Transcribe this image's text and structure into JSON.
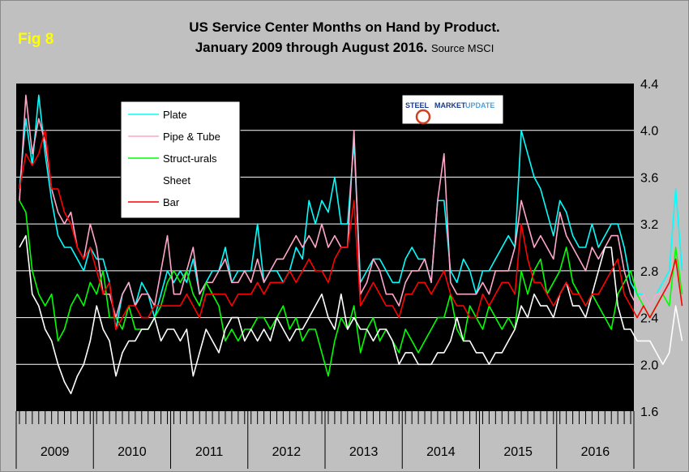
{
  "figure": {
    "fig_label": "Fig 8",
    "title_line1": "US Service Center Months on Hand by Product.",
    "title_line2": "January 2009 through August 2016.",
    "source": "Source MSCI",
    "logo": "STEEL MARKET UPDATE"
  },
  "colors": {
    "plot_bg": "#000000",
    "Plate": "#00ffff",
    "Pipe & Tube": "#ffa6c9",
    "Struct-urals": "#00ff00",
    "Sheet": "#ffffff",
    "Bar": "#ff0000"
  },
  "chart_data": {
    "type": "line",
    "xlabel": "",
    "ylabel": "",
    "ylim": [
      1.6,
      4.4
    ],
    "yticks": [
      "1.6",
      "2.0",
      "2.4",
      "2.8",
      "3.2",
      "3.6",
      "4.0",
      "4.4"
    ],
    "grid": "horizontal",
    "legend_position": "top-left",
    "year_labels": [
      "2009",
      "2010",
      "2011",
      "2012",
      "2013",
      "2014",
      "2015",
      "2016"
    ],
    "x_start": "2009-01",
    "x_end": "2016-08",
    "series": [
      {
        "name": "Plate",
        "values": [
          3.5,
          4.1,
          3.7,
          4.3,
          3.8,
          3.4,
          3.1,
          3.0,
          3.0,
          2.9,
          2.8,
          3.0,
          2.9,
          2.9,
          2.7,
          2.3,
          2.6,
          2.7,
          2.5,
          2.7,
          2.6,
          2.4,
          2.6,
          2.8,
          2.7,
          2.8,
          2.7,
          2.9,
          2.6,
          2.7,
          2.8,
          2.8,
          3.0,
          2.7,
          2.8,
          2.8,
          2.8,
          3.2,
          2.7,
          2.8,
          2.8,
          2.7,
          2.8,
          3.0,
          2.9,
          3.4,
          3.2,
          3.4,
          3.3,
          3.6,
          3.2,
          3.2,
          3.9,
          2.7,
          2.8,
          2.9,
          2.9,
          2.8,
          2.7,
          2.7,
          2.9,
          3.0,
          2.9,
          2.9,
          2.7,
          3.4,
          3.4,
          2.8,
          2.7,
          2.9,
          2.8,
          2.6,
          2.8,
          2.8,
          2.9,
          3.0,
          3.1,
          3.0,
          4.0,
          3.8,
          3.6,
          3.5,
          3.3,
          3.1,
          3.4,
          3.3,
          3.1,
          3.0,
          3.0,
          3.2,
          3.0,
          3.1,
          3.2,
          3.2,
          3.0,
          2.7,
          2.6,
          2.6,
          2.5,
          2.6,
          2.7,
          2.8,
          3.5,
          2.8
        ]
      },
      {
        "name": "Pipe & Tube",
        "values": [
          3.4,
          4.3,
          3.8,
          4.1,
          3.9,
          3.5,
          3.3,
          3.2,
          3.3,
          3.0,
          2.9,
          3.2,
          3.0,
          2.6,
          2.6,
          2.4,
          2.6,
          2.7,
          2.5,
          2.6,
          2.6,
          2.5,
          2.8,
          3.1,
          2.6,
          2.6,
          2.8,
          3.0,
          2.6,
          2.7,
          2.7,
          2.8,
          2.9,
          2.7,
          2.7,
          2.8,
          2.7,
          2.9,
          2.7,
          2.8,
          2.9,
          2.9,
          3.0,
          3.1,
          3.0,
          3.1,
          3.0,
          3.2,
          3.0,
          3.1,
          3.0,
          3.0,
          4.0,
          2.6,
          2.7,
          2.9,
          2.8,
          2.6,
          2.6,
          2.5,
          2.7,
          2.8,
          2.8,
          2.9,
          2.7,
          3.4,
          3.8,
          2.7,
          2.6,
          2.6,
          2.6,
          2.6,
          2.7,
          2.6,
          2.8,
          2.8,
          2.8,
          3.0,
          3.4,
          3.2,
          3.0,
          3.1,
          3.0,
          2.9,
          3.3,
          3.1,
          3.0,
          2.9,
          2.8,
          3.0,
          2.9,
          3.0,
          3.1,
          3.1,
          2.8,
          2.6,
          2.5,
          2.6,
          2.5,
          2.6,
          2.6,
          2.7,
          3.0,
          2.6
        ]
      },
      {
        "name": "Struct-urals",
        "values": [
          3.4,
          3.3,
          2.8,
          2.6,
          2.5,
          2.6,
          2.2,
          2.3,
          2.5,
          2.6,
          2.5,
          2.7,
          2.6,
          2.8,
          2.4,
          2.4,
          2.3,
          2.5,
          2.3,
          2.3,
          2.3,
          2.4,
          2.5,
          2.7,
          2.8,
          2.7,
          2.8,
          2.6,
          2.5,
          2.7,
          2.6,
          2.5,
          2.2,
          2.3,
          2.2,
          2.3,
          2.3,
          2.4,
          2.4,
          2.3,
          2.4,
          2.5,
          2.3,
          2.4,
          2.2,
          2.3,
          2.3,
          2.1,
          1.9,
          2.2,
          2.4,
          2.3,
          2.5,
          2.1,
          2.3,
          2.4,
          2.2,
          2.3,
          2.2,
          2.1,
          2.3,
          2.2,
          2.1,
          2.2,
          2.3,
          2.4,
          2.4,
          2.6,
          2.3,
          2.2,
          2.5,
          2.4,
          2.3,
          2.5,
          2.4,
          2.3,
          2.4,
          2.3,
          2.8,
          2.6,
          2.8,
          2.9,
          2.6,
          2.7,
          2.8,
          3.0,
          2.7,
          2.6,
          2.5,
          2.6,
          2.5,
          2.4,
          2.3,
          2.6,
          2.7,
          2.8,
          2.6,
          2.5,
          2.4,
          2.5,
          2.6,
          2.5,
          3.0,
          2.6
        ]
      },
      {
        "name": "Sheet",
        "values": [
          3.0,
          3.1,
          2.6,
          2.5,
          2.3,
          2.2,
          2.0,
          1.85,
          1.75,
          1.9,
          2.0,
          2.2,
          2.5,
          2.3,
          2.2,
          1.9,
          2.1,
          2.2,
          2.2,
          2.3,
          2.3,
          2.4,
          2.2,
          2.3,
          2.3,
          2.2,
          2.3,
          1.9,
          2.1,
          2.3,
          2.2,
          2.1,
          2.3,
          2.4,
          2.4,
          2.2,
          2.3,
          2.2,
          2.3,
          2.2,
          2.4,
          2.3,
          2.2,
          2.3,
          2.3,
          2.4,
          2.5,
          2.6,
          2.4,
          2.3,
          2.6,
          2.3,
          2.4,
          2.3,
          2.3,
          2.2,
          2.3,
          2.3,
          2.2,
          2.0,
          2.1,
          2.1,
          2.0,
          2.0,
          2.0,
          2.1,
          2.1,
          2.2,
          2.4,
          2.2,
          2.2,
          2.1,
          2.1,
          2.0,
          2.1,
          2.1,
          2.2,
          2.3,
          2.5,
          2.4,
          2.6,
          2.5,
          2.5,
          2.4,
          2.6,
          2.7,
          2.5,
          2.5,
          2.4,
          2.6,
          2.8,
          3.0,
          3.0,
          2.5,
          2.3,
          2.3,
          2.2,
          2.2,
          2.2,
          2.1,
          2.0,
          2.1,
          2.5,
          2.2
        ]
      },
      {
        "name": "Bar",
        "values": [
          3.5,
          3.8,
          3.7,
          3.8,
          4.0,
          3.5,
          3.5,
          3.3,
          3.2,
          3.0,
          2.9,
          3.0,
          2.8,
          2.6,
          2.7,
          2.3,
          2.4,
          2.5,
          2.5,
          2.4,
          2.4,
          2.5,
          2.5,
          2.5,
          2.5,
          2.5,
          2.6,
          2.5,
          2.4,
          2.6,
          2.6,
          2.6,
          2.6,
          2.5,
          2.6,
          2.6,
          2.6,
          2.7,
          2.6,
          2.7,
          2.7,
          2.7,
          2.8,
          2.7,
          2.8,
          2.9,
          2.8,
          2.8,
          2.7,
          2.9,
          3.0,
          3.0,
          3.4,
          2.5,
          2.6,
          2.7,
          2.6,
          2.5,
          2.5,
          2.4,
          2.6,
          2.6,
          2.7,
          2.7,
          2.6,
          2.7,
          2.8,
          2.6,
          2.5,
          2.5,
          2.4,
          2.4,
          2.6,
          2.5,
          2.6,
          2.7,
          2.7,
          2.6,
          3.2,
          2.9,
          2.7,
          2.7,
          2.6,
          2.5,
          2.6,
          2.7,
          2.6,
          2.6,
          2.5,
          2.6,
          2.6,
          2.7,
          2.8,
          2.9,
          2.6,
          2.5,
          2.4,
          2.5,
          2.4,
          2.5,
          2.6,
          2.7,
          2.9,
          2.5
        ]
      }
    ]
  }
}
